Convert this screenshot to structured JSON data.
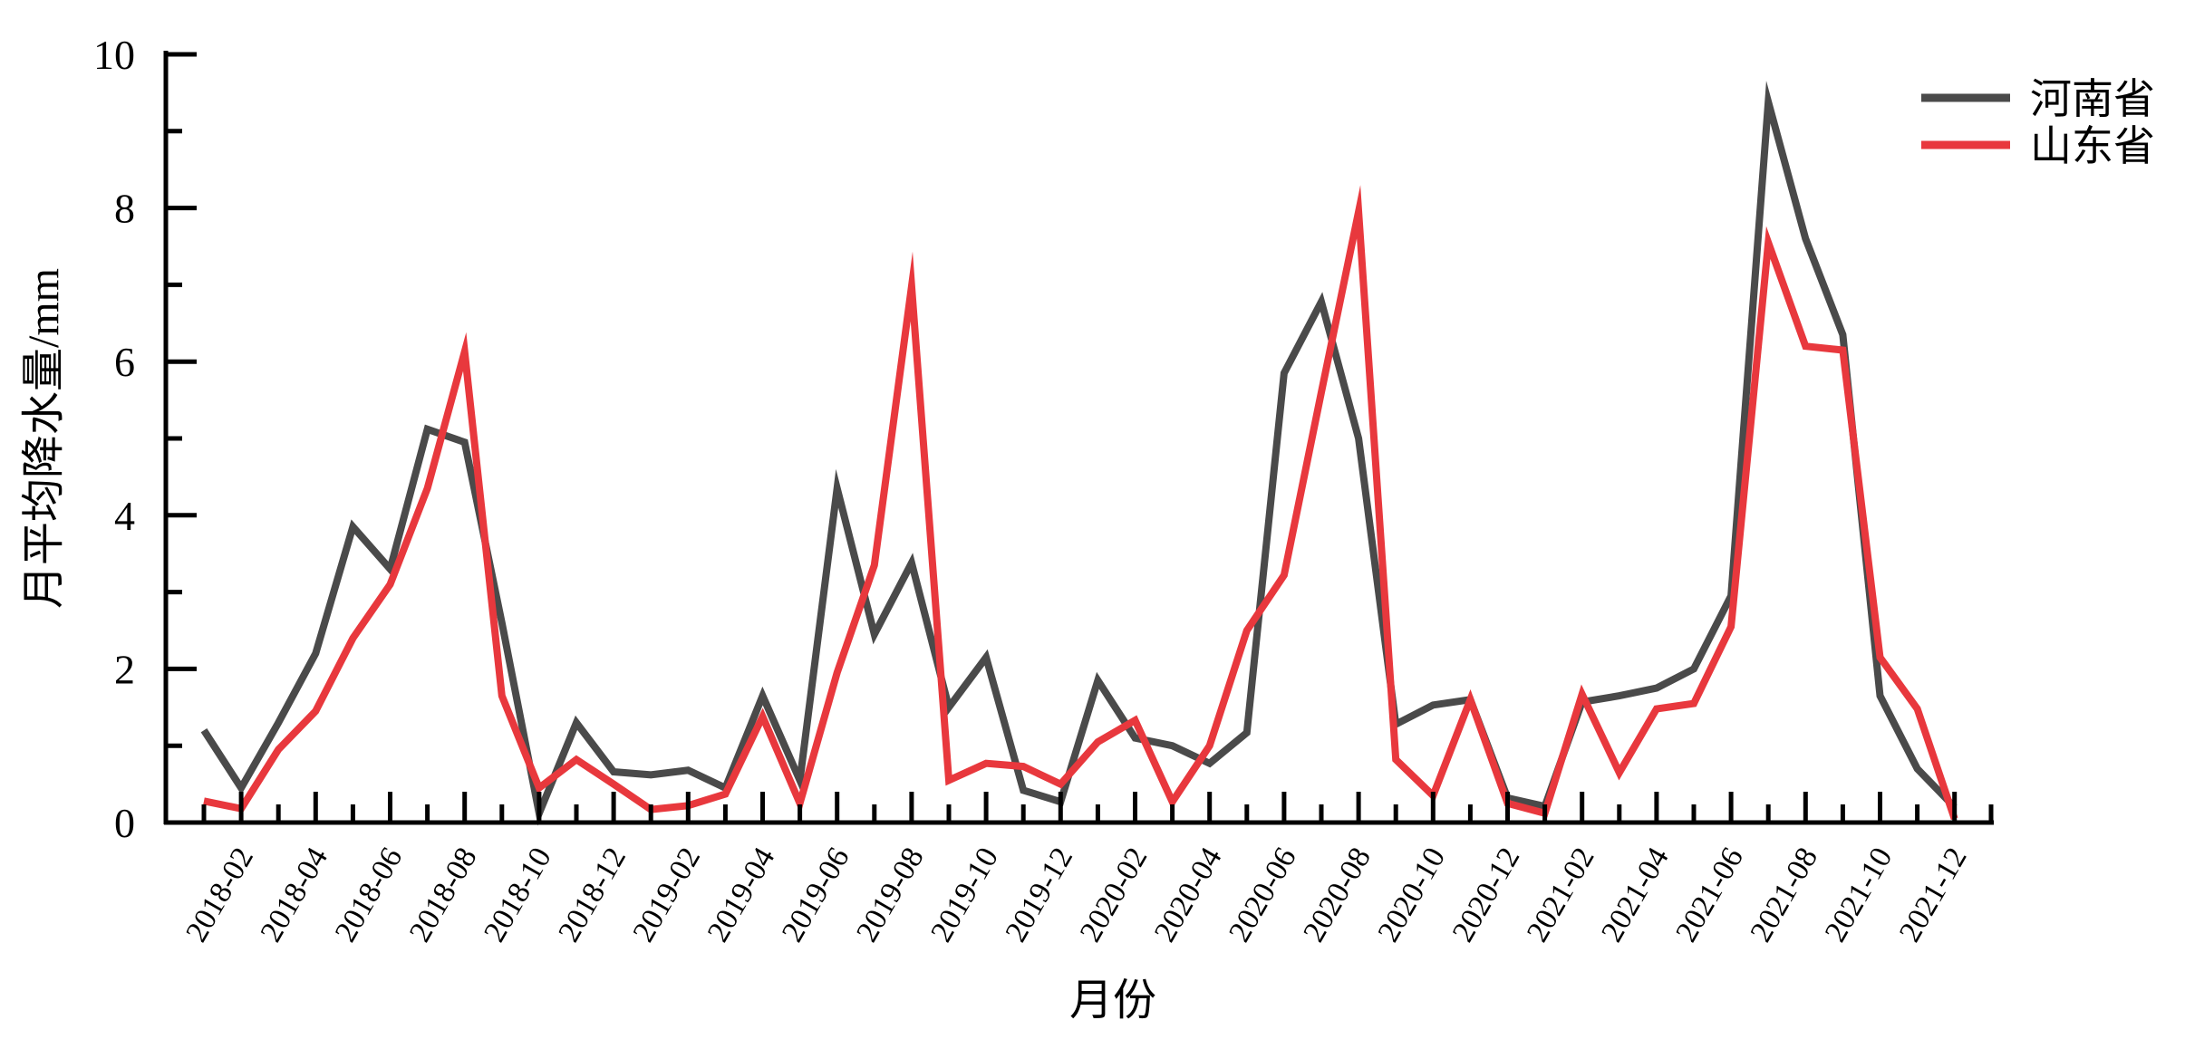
{
  "chart_data": {
    "type": "line",
    "xlabel": "月份",
    "ylabel": "月平均降水量/mm",
    "ylim": [
      0,
      10
    ],
    "yticks": [
      "0",
      "2",
      "4",
      "6",
      "8",
      "10"
    ],
    "xtick_labels": [
      "2018-02",
      "2018-04",
      "2018-06",
      "2018-08",
      "2018-10",
      "2018-12",
      "2019-02",
      "2019-04",
      "2019-06",
      "2019-08",
      "2019-10",
      "2019-12",
      "2020-02",
      "2020-04",
      "2020-06",
      "2020-08",
      "2020-10",
      "2020-12",
      "2021-02",
      "2021-04",
      "2021-06",
      "2021-08",
      "2021-10",
      "2021-12"
    ],
    "x": [
      "2018-01",
      "2018-02",
      "2018-03",
      "2018-04",
      "2018-05",
      "2018-06",
      "2018-07",
      "2018-08",
      "2018-09",
      "2018-10",
      "2018-11",
      "2018-12",
      "2019-01",
      "2019-02",
      "2019-03",
      "2019-04",
      "2019-05",
      "2019-06",
      "2019-07",
      "2019-08",
      "2019-09",
      "2019-10",
      "2019-11",
      "2019-12",
      "2020-01",
      "2020-02",
      "2020-03",
      "2020-04",
      "2020-05",
      "2020-06",
      "2020-07",
      "2020-08",
      "2020-09",
      "2020-10",
      "2020-11",
      "2020-12",
      "2021-01",
      "2021-02",
      "2021-03",
      "2021-04",
      "2021-05",
      "2021-06",
      "2021-07",
      "2021-08",
      "2021-09",
      "2021-10",
      "2021-11",
      "2021-12"
    ],
    "legend_position": "top-right",
    "series": [
      {
        "name": "河南省",
        "color": "#4a4a4a",
        "values": [
          1.2,
          0.45,
          1.3,
          2.2,
          3.85,
          3.3,
          5.12,
          4.95,
          2.6,
          0.12,
          1.3,
          0.66,
          0.62,
          0.68,
          0.45,
          1.65,
          0.55,
          4.35,
          2.45,
          3.38,
          1.5,
          2.15,
          0.42,
          0.27,
          1.85,
          1.1,
          1.0,
          0.77,
          1.17,
          5.85,
          6.78,
          5.0,
          1.28,
          1.53,
          1.6,
          0.32,
          0.21,
          1.57,
          1.65,
          1.75,
          2.0,
          2.95,
          9.38,
          7.6,
          6.35,
          1.65,
          0.7,
          0.2
        ]
      },
      {
        "name": "山东省",
        "color": "#e8383d",
        "values": [
          0.28,
          0.18,
          0.95,
          1.45,
          2.4,
          3.1,
          4.35,
          6.13,
          1.65,
          0.45,
          0.82,
          0.5,
          0.17,
          0.22,
          0.37,
          1.38,
          0.25,
          1.95,
          3.35,
          6.98,
          0.55,
          0.77,
          0.73,
          0.5,
          1.05,
          1.33,
          0.27,
          1.0,
          2.5,
          3.22,
          5.6,
          7.95,
          0.82,
          0.35,
          1.6,
          0.25,
          0.12,
          1.67,
          0.65,
          1.48,
          1.55,
          2.55,
          7.55,
          6.2,
          6.15,
          2.15,
          1.48,
          0.05
        ]
      }
    ]
  }
}
